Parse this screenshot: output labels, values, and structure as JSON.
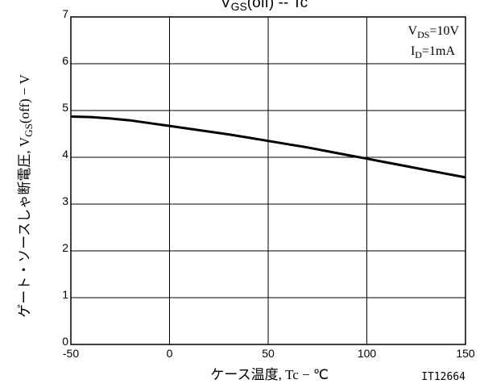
{
  "chart_data": {
    "type": "line",
    "title": {
      "main": "V",
      "sub": "GS",
      "rest": "(off)  --  Tc"
    },
    "xlabel": "ケース温度, Tc − ℃",
    "ylabel": "ゲート・ソースしゃ断電圧, V",
    "ylabel_sub": "GS",
    "ylabel_rest": "(off) − V",
    "xlim": [
      -50,
      150
    ],
    "ylim": [
      0,
      7
    ],
    "xticks": [
      -50,
      0,
      50,
      100,
      150
    ],
    "yticks": [
      0,
      1,
      2,
      3,
      4,
      5,
      6,
      7
    ],
    "grid": true,
    "figure_id": "IT12664",
    "conditions": [
      {
        "main": "V",
        "sub": "DS",
        "rest": "=10V"
      },
      {
        "main": "I",
        "sub": "D",
        "rest": "=1mA"
      }
    ],
    "series": [
      {
        "color": "#000000",
        "x": [
          -50,
          -40,
          -30,
          -20,
          -10,
          0,
          10,
          20,
          30,
          40,
          50,
          60,
          70,
          80,
          90,
          100,
          110,
          120,
          130,
          140,
          150
        ],
        "y": [
          4.87,
          4.86,
          4.83,
          4.79,
          4.73,
          4.67,
          4.61,
          4.55,
          4.49,
          4.42,
          4.35,
          4.28,
          4.21,
          4.13,
          4.05,
          3.97,
          3.89,
          3.81,
          3.73,
          3.65,
          3.57
        ]
      }
    ]
  }
}
